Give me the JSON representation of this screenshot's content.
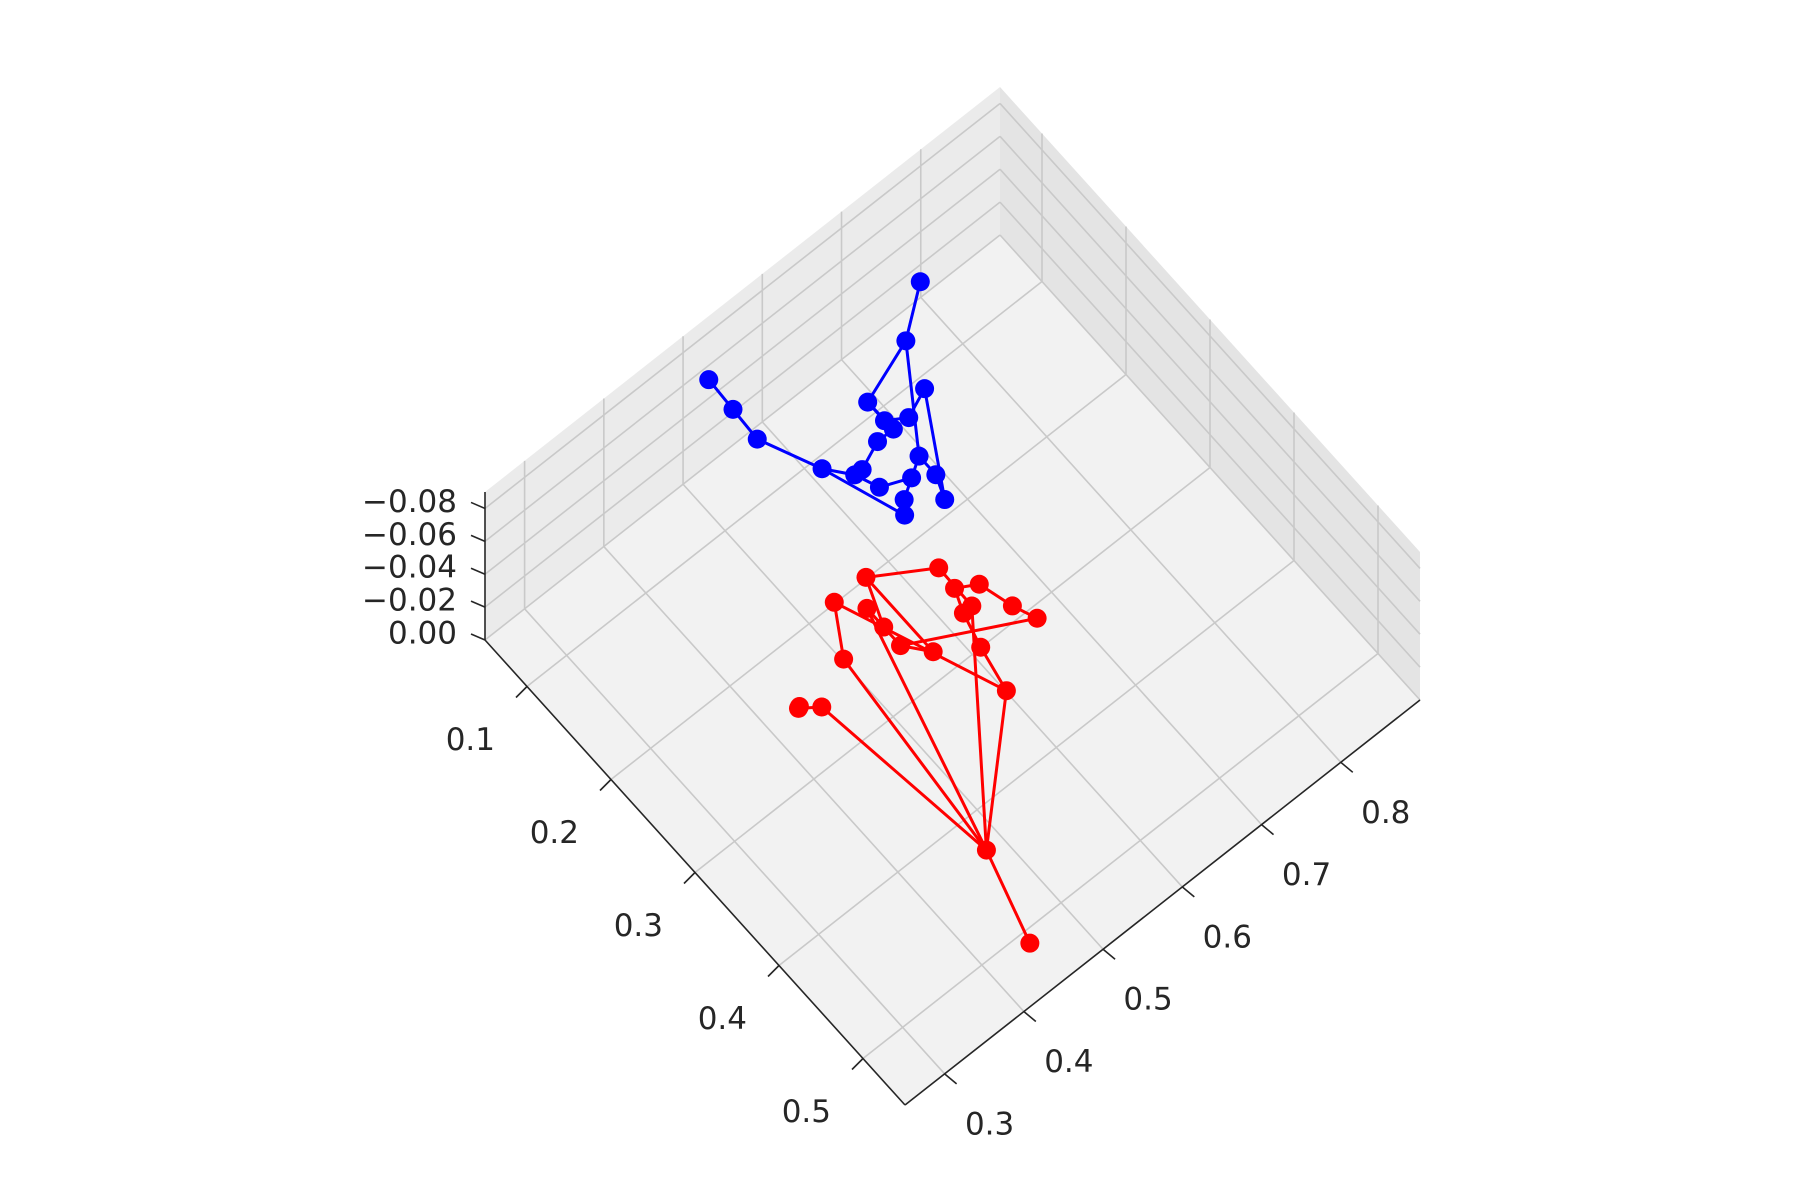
{
  "chart_data": {
    "type": "line3d",
    "title": "",
    "xlabel": "",
    "ylabel": "",
    "zlabel": "",
    "grid": true,
    "legend": "none",
    "axes": {
      "x": {
        "ticks": [
          0.3,
          0.4,
          0.5,
          0.6,
          0.7,
          0.8
        ],
        "tick_labels": [
          "0.3",
          "0.4",
          "0.5",
          "0.6",
          "0.7",
          "0.8"
        ]
      },
      "y": {
        "ticks": [
          0.1,
          0.2,
          0.3,
          0.4,
          0.5
        ],
        "tick_labels": [
          "0.1",
          "0.2",
          "0.3",
          "0.4",
          "0.5"
        ]
      },
      "z": {
        "ticks": [
          0.0,
          -0.02,
          -0.04,
          -0.06,
          -0.08
        ],
        "tick_labels": [
          "0.00",
          "−0.02",
          "−0.04",
          "−0.06",
          "−0.08"
        ]
      }
    },
    "series": [
      {
        "color": "#ff0000",
        "marker": "circle",
        "points": [
          [
            0.45,
            0.51,
            0.0
          ],
          [
            0.48,
            0.43,
            0.0
          ],
          [
            0.59,
            0.35,
            -0.01
          ],
          [
            0.6,
            0.31,
            -0.01
          ],
          [
            0.61,
            0.28,
            -0.01
          ],
          [
            0.62,
            0.26,
            -0.01
          ],
          [
            0.63,
            0.28,
            -0.02
          ],
          [
            0.64,
            0.31,
            -0.02
          ],
          [
            0.65,
            0.33,
            -0.02
          ],
          [
            0.52,
            0.25,
            -0.03
          ],
          [
            0.52,
            0.29,
            -0.03
          ],
          [
            0.54,
            0.31,
            -0.03
          ],
          [
            0.61,
            0.29,
            -0.02
          ],
          [
            0.6,
            0.26,
            -0.03
          ],
          [
            0.54,
            0.23,
            -0.03
          ],
          [
            0.52,
            0.27,
            -0.03
          ],
          [
            0.48,
            0.26,
            -0.02
          ],
          [
            0.5,
            0.23,
            -0.03
          ],
          [
            0.41,
            0.3,
            -0.04
          ],
          [
            0.37,
            0.31,
            -0.06
          ],
          [
            0.35,
            0.33,
            -0.08
          ]
        ],
        "edges": [
          [
            0,
            1
          ],
          [
            1,
            2
          ],
          [
            2,
            3
          ],
          [
            3,
            4
          ],
          [
            4,
            5
          ],
          [
            5,
            6
          ],
          [
            6,
            7
          ],
          [
            7,
            8
          ],
          [
            1,
            9
          ],
          [
            9,
            10
          ],
          [
            10,
            11
          ],
          [
            1,
            12
          ],
          [
            12,
            13
          ],
          [
            13,
            14
          ],
          [
            14,
            15
          ],
          [
            1,
            16
          ],
          [
            16,
            17
          ],
          [
            17,
            2
          ],
          [
            1,
            18
          ],
          [
            18,
            19
          ],
          [
            19,
            20
          ],
          [
            10,
            8
          ],
          [
            14,
            11
          ]
        ]
      },
      {
        "color": "#0000ff",
        "marker": "circle",
        "points": [
          [
            0.81,
            0.04,
            0.0
          ],
          [
            0.76,
            0.07,
            0.0
          ],
          [
            0.68,
            0.1,
            -0.01
          ],
          [
            0.68,
            0.12,
            -0.01
          ],
          [
            0.7,
            0.13,
            -0.01
          ],
          [
            0.72,
            0.13,
            -0.02
          ],
          [
            0.67,
            0.14,
            -0.02
          ],
          [
            0.65,
            0.14,
            -0.02
          ],
          [
            0.62,
            0.15,
            -0.02
          ],
          [
            0.66,
            0.18,
            -0.03
          ],
          [
            0.66,
            0.2,
            -0.03
          ],
          [
            0.65,
            0.22,
            -0.03
          ],
          [
            0.64,
            0.19,
            -0.03
          ],
          [
            0.62,
            0.2,
            -0.03
          ],
          [
            0.61,
            0.21,
            -0.03
          ],
          [
            0.61,
            0.18,
            -0.03
          ],
          [
            0.6,
            0.16,
            -0.03
          ],
          [
            0.58,
            0.14,
            -0.03
          ],
          [
            0.53,
            0.11,
            -0.05
          ],
          [
            0.51,
            0.1,
            -0.07
          ],
          [
            0.49,
            0.09,
            -0.09
          ]
        ],
        "edges": [
          [
            0,
            1
          ],
          [
            1,
            2
          ],
          [
            2,
            3
          ],
          [
            3,
            4
          ],
          [
            4,
            5
          ],
          [
            2,
            6
          ],
          [
            6,
            7
          ],
          [
            7,
            8
          ],
          [
            1,
            9
          ],
          [
            9,
            10
          ],
          [
            10,
            11
          ],
          [
            9,
            12
          ],
          [
            12,
            13
          ],
          [
            13,
            14
          ],
          [
            12,
            15
          ],
          [
            15,
            16
          ],
          [
            16,
            17
          ],
          [
            17,
            18
          ],
          [
            18,
            19
          ],
          [
            19,
            20
          ],
          [
            8,
            16
          ],
          [
            5,
            11
          ],
          [
            14,
            17
          ]
        ]
      }
    ]
  }
}
